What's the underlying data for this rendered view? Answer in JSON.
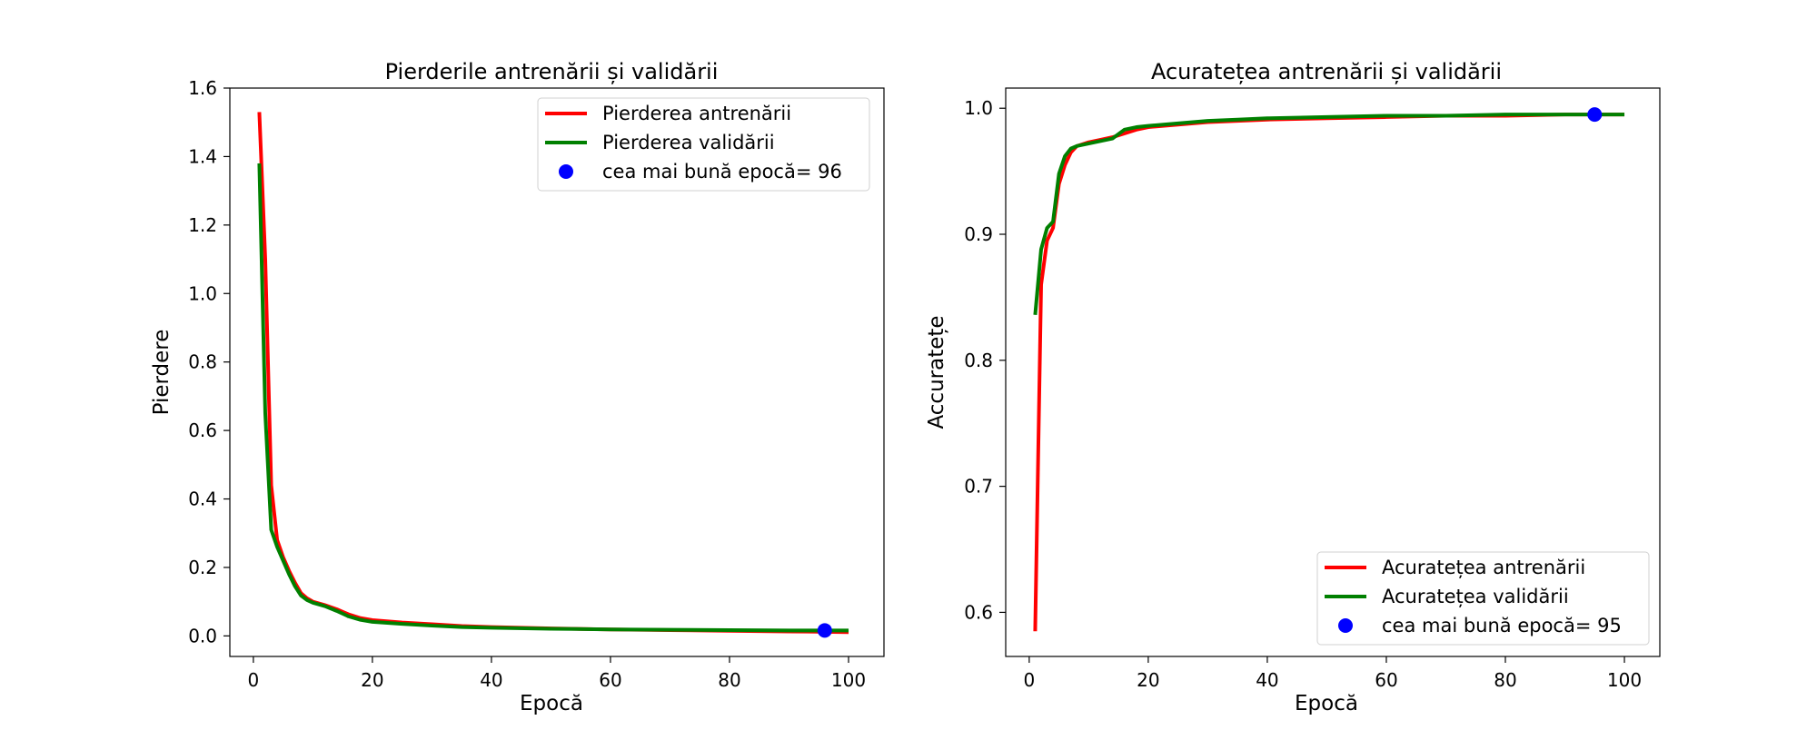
{
  "chart_data": [
    {
      "type": "line",
      "title": "Pierderile antrenării și validării",
      "xlabel": "Epocă",
      "ylabel": "Pierdere",
      "xlim": [
        -3.95,
        105.95
      ],
      "ylim": [
        -0.06,
        1.6
      ],
      "xticks": [
        0,
        20,
        40,
        60,
        80,
        100
      ],
      "yticks": [
        0.0,
        0.2,
        0.4,
        0.6,
        0.8,
        1.0,
        1.2,
        1.4,
        1.6
      ],
      "ytick_labels": [
        "0.0",
        "0.2",
        "0.4",
        "0.6",
        "0.8",
        "1.0",
        "1.2",
        "1.4",
        "1.6"
      ],
      "legend_position": "upper right",
      "series": [
        {
          "name": "Pierderea antrenării",
          "color": "#ff0000",
          "x": [
            1,
            2,
            3,
            4,
            5,
            6,
            7,
            8,
            9,
            10,
            12,
            14,
            16,
            18,
            20,
            25,
            30,
            35,
            40,
            50,
            60,
            70,
            80,
            90,
            96,
            100
          ],
          "y": [
            1.53,
            1.1,
            0.44,
            0.28,
            0.23,
            0.19,
            0.155,
            0.125,
            0.11,
            0.1,
            0.09,
            0.078,
            0.063,
            0.052,
            0.046,
            0.039,
            0.034,
            0.029,
            0.026,
            0.022,
            0.019,
            0.017,
            0.015,
            0.013,
            0.012,
            0.011
          ]
        },
        {
          "name": "Pierderea validării",
          "color": "#008000",
          "x": [
            1,
            2,
            3,
            4,
            5,
            6,
            7,
            8,
            9,
            10,
            12,
            14,
            16,
            18,
            20,
            25,
            30,
            35,
            40,
            50,
            60,
            70,
            80,
            90,
            96,
            100
          ],
          "y": [
            1.38,
            0.65,
            0.31,
            0.26,
            0.22,
            0.18,
            0.145,
            0.118,
            0.105,
            0.097,
            0.087,
            0.073,
            0.057,
            0.047,
            0.041,
            0.035,
            0.03,
            0.026,
            0.024,
            0.021,
            0.019,
            0.018,
            0.017,
            0.016,
            0.016,
            0.016
          ]
        }
      ],
      "best_point": {
        "label": "cea mai bună epocă= 96",
        "x": 96,
        "y": 0.016,
        "color": "#0000ff"
      }
    },
    {
      "type": "line",
      "title": "Acuratețea antrenării și validării",
      "xlabel": "Epocă",
      "ylabel": "Accuratețe",
      "xlim": [
        -3.95,
        105.95
      ],
      "ylim": [
        0.565,
        1.016
      ],
      "xticks": [
        0,
        20,
        40,
        60,
        80,
        100
      ],
      "yticks": [
        0.6,
        0.7,
        0.8,
        0.9,
        1.0
      ],
      "ytick_labels": [
        "0.6",
        "0.7",
        "0.8",
        "0.9",
        "1.0"
      ],
      "legend_position": "lower right",
      "series": [
        {
          "name": "Acuratețea antrenării",
          "color": "#ff0000",
          "x": [
            1,
            2,
            3,
            4,
            5,
            6,
            7,
            8,
            10,
            12,
            14,
            16,
            18,
            20,
            25,
            30,
            35,
            40,
            50,
            60,
            70,
            80,
            90,
            95,
            100
          ],
          "y": [
            0.585,
            0.86,
            0.895,
            0.905,
            0.94,
            0.955,
            0.965,
            0.97,
            0.973,
            0.975,
            0.977,
            0.98,
            0.983,
            0.985,
            0.987,
            0.989,
            0.99,
            0.991,
            0.992,
            0.993,
            0.994,
            0.994,
            0.995,
            0.995,
            0.995
          ]
        },
        {
          "name": "Acuratețea validării",
          "color": "#008000",
          "x": [
            1,
            2,
            3,
            4,
            5,
            6,
            7,
            8,
            10,
            12,
            14,
            16,
            18,
            20,
            25,
            30,
            35,
            40,
            50,
            60,
            70,
            80,
            90,
            95,
            100
          ],
          "y": [
            0.836,
            0.888,
            0.905,
            0.91,
            0.948,
            0.962,
            0.968,
            0.97,
            0.972,
            0.974,
            0.976,
            0.983,
            0.985,
            0.986,
            0.988,
            0.99,
            0.991,
            0.992,
            0.993,
            0.994,
            0.994,
            0.995,
            0.995,
            0.995,
            0.995
          ]
        }
      ],
      "best_point": {
        "label": "cea mai bună epocă= 95",
        "x": 95,
        "y": 0.995,
        "color": "#0000ff"
      }
    }
  ]
}
